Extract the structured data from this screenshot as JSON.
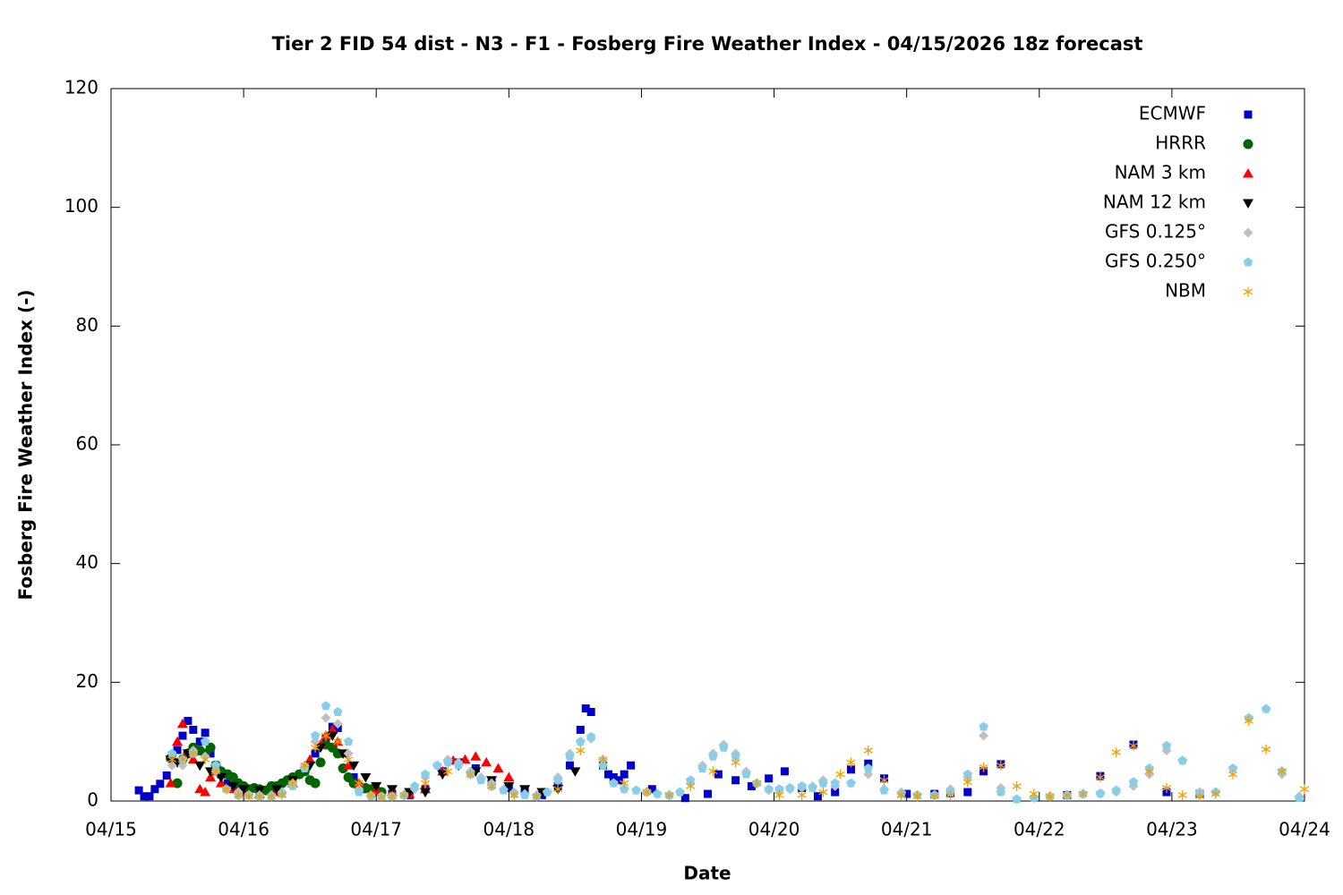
{
  "chart_data": {
    "type": "scatter",
    "title": "Tier 2 FID 54 dist - N3 - F1 - Fosberg Fire Weather Index - 04/15/2026 18z forecast",
    "x_label": "Date",
    "y_label": "Fosberg Fire Weather Index (-)",
    "xlim": [
      15,
      24
    ],
    "ylim": [
      0,
      120
    ],
    "xticks": [
      {
        "value": 15,
        "label": "04/15"
      },
      {
        "value": 16,
        "label": "04/16"
      },
      {
        "value": 17,
        "label": "04/17"
      },
      {
        "value": 18,
        "label": "04/18"
      },
      {
        "value": 19,
        "label": "04/19"
      },
      {
        "value": 20,
        "label": "04/20"
      },
      {
        "value": 21,
        "label": "04/21"
      },
      {
        "value": 22,
        "label": "04/22"
      },
      {
        "value": 23,
        "label": "04/23"
      },
      {
        "value": 24,
        "label": "04/24"
      }
    ],
    "yticks": [
      0,
      20,
      40,
      60,
      80,
      100,
      120
    ],
    "grid": false,
    "legend": "top-right",
    "series": [
      {
        "name": "ECMWF",
        "color": "#0000cc",
        "marker": "square",
        "x": [
          15.21,
          15.25,
          15.29,
          15.33,
          15.37,
          15.42,
          15.46,
          15.5,
          15.54,
          15.58,
          15.62,
          15.67,
          15.71,
          15.75,
          15.79,
          15.83,
          15.88,
          15.92,
          16.0,
          16.12,
          16.25,
          16.37,
          16.46,
          16.54,
          16.62,
          16.67,
          16.71,
          16.75,
          16.83,
          16.92,
          17.0,
          17.12,
          17.25,
          17.37,
          17.5,
          17.62,
          17.75,
          17.87,
          18.0,
          18.12,
          18.25,
          18.37,
          18.46,
          18.54,
          18.58,
          18.62,
          18.71,
          18.75,
          18.79,
          18.83,
          18.87,
          18.92,
          19.08,
          19.33,
          19.5,
          19.58,
          19.71,
          19.83,
          19.96,
          20.08,
          20.21,
          20.33,
          20.46,
          20.58,
          20.71,
          20.83,
          21.0,
          21.21,
          21.33,
          21.46,
          21.58,
          21.71,
          22.21,
          22.46,
          22.71,
          22.96,
          23.21
        ],
        "values": [
          1.8,
          0.8,
          0.8,
          2,
          2.9,
          4.3,
          7.2,
          8.6,
          11,
          13.5,
          12,
          10,
          11.5,
          8,
          6,
          4.5,
          3,
          2.2,
          1.8,
          1.5,
          2,
          3.5,
          5,
          8,
          10.5,
          12.5,
          12.3,
          8,
          4,
          2,
          1.5,
          1.2,
          1,
          2,
          5,
          6.5,
          5.5,
          3,
          2.2,
          1.5,
          1,
          2.5,
          6,
          12,
          15.6,
          15,
          6,
          4.5,
          4,
          3.5,
          4.5,
          6,
          2,
          0.5,
          1.2,
          4.5,
          3.5,
          2.5,
          3.8,
          5,
          2.2,
          0.8,
          1.5,
          5.3,
          6.3,
          3.8,
          1.2,
          1.2,
          1.3,
          1.5,
          5,
          6.2,
          1,
          4.2,
          9.5,
          1.5,
          1.2
        ]
      },
      {
        "name": "HRRR",
        "color": "#006400",
        "marker": "circle",
        "x": [
          15.45,
          15.5,
          15.54,
          15.58,
          15.62,
          15.67,
          15.71,
          15.75,
          15.79,
          15.83,
          15.88,
          15.92,
          15.96,
          16.0,
          16.04,
          16.08,
          16.12,
          16.17,
          16.21,
          16.25,
          16.29,
          16.33,
          16.37,
          16.42,
          16.46,
          16.5,
          16.54,
          16.58,
          16.62,
          16.67,
          16.71,
          16.75,
          16.79,
          16.83,
          16.87,
          16.92,
          16.96,
          17.0,
          17.04
        ],
        "values": [
          7.2,
          3,
          7,
          8,
          9,
          8.5,
          8,
          9,
          6,
          5,
          4.5,
          4,
          3,
          2.5,
          2,
          2.2,
          2,
          1.8,
          2.5,
          2.5,
          3,
          3.5,
          4,
          4.5,
          5,
          3.5,
          3,
          6.5,
          9.5,
          9,
          8,
          5.5,
          4,
          3,
          2.5,
          2.2,
          2,
          1.8,
          1.5
        ]
      },
      {
        "name": "NAM 3 km",
        "color": "#ff0000",
        "marker": "triangle-up",
        "x": [
          15.45,
          15.5,
          15.54,
          15.58,
          15.62,
          15.67,
          15.71,
          15.75,
          15.79,
          15.83,
          15.92,
          16.0,
          16.12,
          16.25,
          16.37,
          16.5,
          16.58,
          16.62,
          16.67,
          16.71,
          16.79,
          16.87,
          17.0,
          17.12,
          17.25,
          17.37,
          17.5,
          17.58,
          17.67,
          17.75,
          17.83,
          17.92,
          18.0
        ],
        "values": [
          3,
          10,
          13,
          8,
          7,
          2,
          1.5,
          4,
          5,
          3,
          2,
          1.5,
          1.2,
          1.5,
          3,
          7,
          9.5,
          11,
          12,
          10,
          6,
          3,
          1.8,
          1.5,
          1.2,
          2,
          5,
          6.8,
          7,
          7.5,
          6.5,
          5.5,
          4
        ]
      },
      {
        "name": "NAM 12 km",
        "color": "#000000",
        "marker": "triangle-down",
        "x": [
          15.45,
          15.5,
          15.58,
          15.67,
          15.75,
          15.83,
          15.92,
          16.0,
          16.12,
          16.25,
          16.37,
          16.5,
          16.58,
          16.67,
          16.75,
          16.83,
          16.92,
          17.0,
          17.12,
          17.25,
          17.37,
          17.5,
          17.62,
          17.75,
          17.87,
          18.0,
          18.12,
          18.25,
          18.37,
          18.5
        ],
        "values": [
          7,
          6.5,
          8,
          6,
          5,
          4,
          2.5,
          2,
          1.8,
          2,
          3.5,
          6,
          9,
          11,
          8,
          6,
          4,
          2.5,
          2,
          1.5,
          1.5,
          4.5,
          6,
          5,
          3.5,
          2.5,
          2,
          1.5,
          2,
          5
        ]
      },
      {
        "name": "GFS 0.125°",
        "color": "#c0c0c0",
        "marker": "diamond",
        "x": [
          15.46,
          15.54,
          15.62,
          15.71,
          15.79,
          15.87,
          15.96,
          16.04,
          16.12,
          16.21,
          16.29,
          16.37,
          16.46,
          16.54,
          16.62,
          16.71,
          16.79,
          16.87,
          16.96,
          17.04,
          17.12,
          17.21,
          17.29,
          17.37,
          17.46,
          17.54,
          17.62,
          17.71,
          17.79,
          17.87,
          17.96,
          18.04,
          18.12,
          18.21,
          18.29,
          18.37,
          18.46,
          18.54,
          18.62,
          18.71,
          18.79,
          18.87,
          18.96,
          19.04,
          19.12,
          19.21,
          19.29,
          19.37,
          19.46,
          19.54,
          19.62,
          19.71,
          19.79,
          19.87,
          19.96,
          20.04,
          20.12,
          20.21,
          20.29,
          20.37,
          20.46,
          20.58,
          20.71,
          20.83,
          20.96,
          21.08,
          21.21,
          21.33,
          21.46,
          21.58,
          21.71,
          21.83,
          21.96,
          22.08,
          22.21,
          22.33,
          22.46,
          22.58,
          22.71,
          22.83,
          22.96,
          23.08,
          23.21,
          23.33,
          23.46,
          23.58,
          23.71,
          23.83,
          23.96
        ],
        "values": [
          6,
          6,
          8.5,
          7.5,
          5,
          2,
          1.5,
          1,
          1,
          1,
          1.5,
          3,
          6,
          10,
          14,
          13,
          8,
          2,
          1,
          0.8,
          0.8,
          1,
          2,
          4,
          6,
          7,
          6.5,
          5,
          4,
          3,
          2,
          1.5,
          1.2,
          1,
          1.5,
          4,
          8,
          10,
          10.5,
          7,
          3,
          2,
          1.8,
          1.5,
          1.2,
          1,
          1.5,
          3,
          6,
          8,
          9.5,
          8,
          5,
          3,
          1.8,
          1.8,
          2,
          2.2,
          2.5,
          3.5,
          2.5,
          3,
          4.5,
          2,
          1.5,
          1,
          1,
          2,
          4,
          11,
          2.2,
          0.3,
          0.5,
          0.8,
          1,
          1.2,
          1.2,
          1.5,
          2.5,
          4.5,
          8.5,
          6.8,
          1.5,
          1.5,
          5.5,
          14,
          15.5,
          4.5,
          0.8
        ]
      },
      {
        "name": "GFS 0.250°",
        "color": "#87ceeb",
        "marker": "pentagon",
        "x": [
          15.46,
          15.54,
          15.62,
          15.71,
          15.79,
          15.87,
          15.96,
          16.04,
          16.12,
          16.21,
          16.29,
          16.37,
          16.46,
          16.54,
          16.62,
          16.71,
          16.79,
          16.87,
          16.96,
          17.04,
          17.12,
          17.21,
          17.29,
          17.37,
          17.46,
          17.54,
          17.62,
          17.71,
          17.79,
          17.87,
          17.96,
          18.04,
          18.12,
          18.21,
          18.29,
          18.37,
          18.46,
          18.54,
          18.62,
          18.71,
          18.79,
          18.87,
          18.96,
          19.04,
          19.12,
          19.21,
          19.29,
          19.37,
          19.46,
          19.54,
          19.62,
          19.71,
          19.79,
          19.87,
          19.96,
          20.04,
          20.12,
          20.21,
          20.29,
          20.37,
          20.46,
          20.58,
          20.71,
          20.83,
          20.96,
          21.08,
          21.21,
          21.33,
          21.46,
          21.58,
          21.71,
          21.83,
          21.96,
          22.08,
          22.21,
          22.33,
          22.46,
          22.58,
          22.71,
          22.83,
          22.96,
          23.08,
          23.21,
          23.33,
          23.46,
          23.58,
          23.71,
          23.83,
          23.96
        ],
        "values": [
          8,
          7,
          8,
          10,
          6,
          2,
          1,
          1,
          0.8,
          0.8,
          1.2,
          2.5,
          5.5,
          11,
          16,
          15,
          10,
          1.5,
          0.8,
          0.8,
          0.8,
          1,
          2.5,
          4.5,
          6,
          6.5,
          6,
          4.5,
          3.5,
          2.5,
          1.8,
          1.2,
          1,
          0.8,
          1.5,
          3.5,
          7.5,
          10,
          10.8,
          6,
          3,
          2,
          1.8,
          1.5,
          1.2,
          1,
          1.5,
          3.5,
          5.5,
          7.5,
          9,
          7.5,
          4.5,
          3,
          2,
          2,
          2.2,
          2.5,
          2.2,
          3,
          3,
          3,
          5.5,
          1.8,
          1.2,
          1,
          1,
          1.5,
          4.5,
          12.5,
          1.5,
          0.3,
          0.5,
          0.8,
          1,
          1.2,
          1.3,
          1.8,
          3.2,
          5.5,
          9.3,
          6.8,
          1.3,
          1.5,
          5.5,
          14,
          15.5,
          5,
          0.5
        ]
      },
      {
        "name": "NBM",
        "color": "#f0a000",
        "marker": "asterisk",
        "x": [
          15.46,
          15.54,
          15.62,
          15.71,
          15.79,
          15.87,
          15.96,
          16.04,
          16.12,
          16.21,
          16.29,
          16.37,
          16.46,
          16.54,
          16.62,
          16.71,
          16.79,
          16.87,
          16.96,
          17.04,
          17.12,
          17.21,
          17.37,
          17.54,
          17.71,
          17.87,
          18.04,
          18.21,
          18.37,
          18.54,
          18.71,
          18.87,
          19.04,
          19.21,
          19.37,
          19.54,
          19.71,
          19.87,
          20.04,
          20.21,
          20.37,
          20.5,
          20.58,
          20.71,
          20.83,
          20.96,
          21.08,
          21.21,
          21.33,
          21.46,
          21.58,
          21.71,
          21.83,
          21.96,
          22.08,
          22.21,
          22.33,
          22.46,
          22.58,
          22.71,
          22.83,
          22.96,
          23.08,
          23.21,
          23.33,
          23.46,
          23.58,
          23.71,
          23.83,
          24.0
        ],
        "values": [
          7,
          7,
          8,
          7,
          5,
          2,
          1,
          0.8,
          0.8,
          0.8,
          1,
          3,
          6,
          9,
          11,
          10,
          7,
          3,
          1,
          0.7,
          0.8,
          1,
          3,
          5,
          4.5,
          2.5,
          1,
          0.8,
          2,
          8.5,
          7,
          3,
          1.5,
          1,
          2.5,
          5,
          6.5,
          3,
          1,
          1,
          1.5,
          4.5,
          6.5,
          8.5,
          3.5,
          1,
          0.8,
          0.8,
          1,
          3.2,
          5.7,
          6,
          2.5,
          1.2,
          0.8,
          1,
          1.2,
          4,
          8.2,
          9.3,
          5,
          2.2,
          1,
          0.8,
          1.2,
          4.5,
          13.5,
          8.7,
          5,
          2
        ]
      }
    ]
  }
}
